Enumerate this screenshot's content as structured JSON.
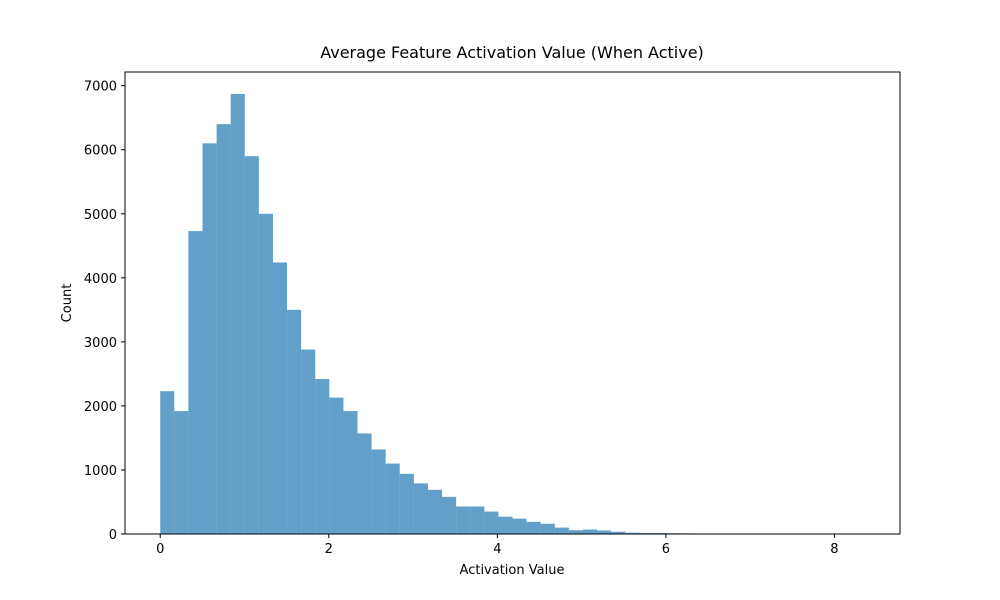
{
  "chart_data": {
    "type": "histogram",
    "title": "Average Feature Activation Value (When Active)",
    "x_label": "Activation Value",
    "y_label": "Count",
    "color": "#1f77b4",
    "opacity": 0.7,
    "bins": [
      0,
      0.167,
      0.334,
      0.502,
      0.669,
      0.836,
      1.003,
      1.17,
      1.338,
      1.505,
      1.672,
      1.839,
      2.006,
      2.174,
      2.341,
      2.508,
      2.675,
      2.842,
      3.01,
      3.177,
      3.344,
      3.511,
      3.678,
      3.846,
      4.013,
      4.18,
      4.347,
      4.514,
      4.682,
      4.849,
      5.016,
      5.183,
      5.35,
      5.518,
      5.685,
      5.852,
      6.019,
      6.186,
      6.354,
      6.521,
      6.688,
      6.855,
      7.022,
      7.19,
      7.357,
      7.524,
      7.691,
      7.858,
      8.026,
      8.193,
      8.36
    ],
    "counts": [
      2230,
      1920,
      4730,
      6100,
      6400,
      6870,
      5900,
      5000,
      4240,
      3500,
      2880,
      2420,
      2130,
      1920,
      1570,
      1320,
      1100,
      940,
      790,
      690,
      580,
      430,
      430,
      350,
      270,
      240,
      190,
      160,
      100,
      60,
      70,
      55,
      35,
      20,
      15,
      15,
      12,
      10,
      8,
      5,
      3,
      2,
      2,
      1,
      1,
      1,
      0,
      1,
      0,
      1
    ],
    "xlim": [
      -0.418,
      8.778
    ],
    "ylim": [
      0,
      7214
    ],
    "xticks": [
      0,
      2,
      4,
      6,
      8
    ],
    "yticks": [
      0,
      1000,
      2000,
      3000,
      4000,
      5000,
      6000,
      7000
    ]
  }
}
